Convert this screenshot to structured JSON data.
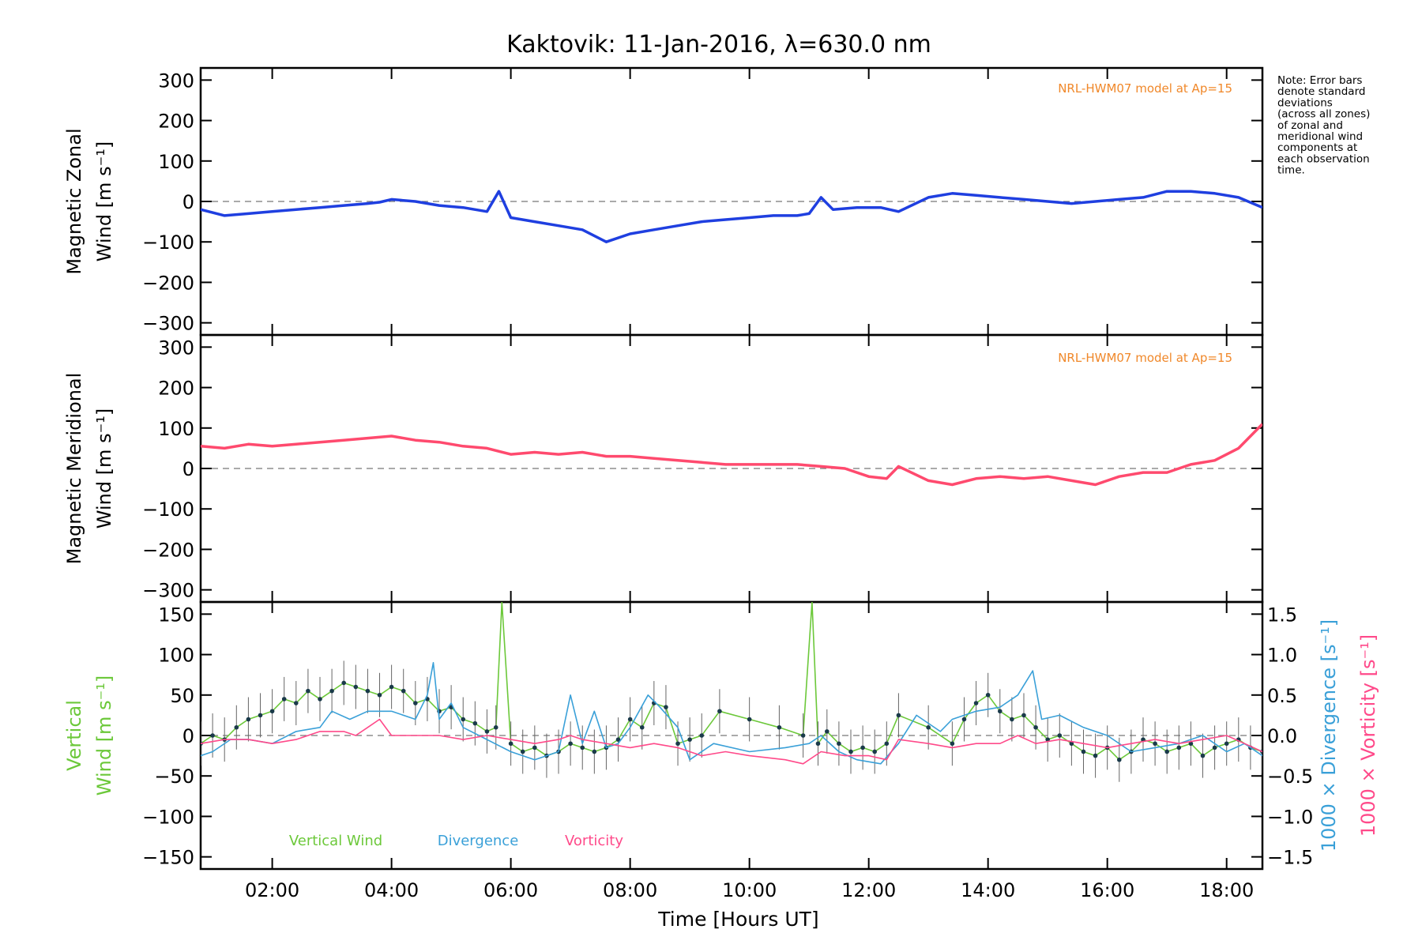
{
  "chart_data": {
    "type": "line",
    "title": "Kaktovik: 11-Jan-2016, λ=630.0 nm",
    "xlabel": "Time [Hours UT]",
    "xlim": [
      0.8,
      18.6
    ],
    "x_ticks": [
      2,
      4,
      6,
      8,
      10,
      12,
      14,
      16,
      18
    ],
    "x_tick_labels": [
      "02:00",
      "04:00",
      "06:00",
      "08:00",
      "10:00",
      "12:00",
      "14:00",
      "16:00",
      "18:00"
    ],
    "note": [
      "Note: Error bars",
      "denote standard",
      "deviations",
      "(across all zones)",
      "of zonal and",
      "meridional wind",
      "components at",
      "each observation",
      "time."
    ],
    "panels": [
      {
        "id": "zonal",
        "ylabel": [
          "Magnetic Zonal",
          "Wind [m s⁻¹]"
        ],
        "ylim": [
          -330,
          330
        ],
        "y_ticks": [
          -300,
          -200,
          -100,
          0,
          100,
          200,
          300
        ],
        "y_tick_labels": [
          "−300",
          "−200",
          "−100",
          "0",
          "100",
          "200",
          "300"
        ],
        "model_label": "NRL-HWM07 model at Ap=15",
        "series": [
          {
            "color": "#1f3fe0",
            "x": [
              0.8,
              1.2,
              1.6,
              2.0,
              2.4,
              2.8,
              3.2,
              3.6,
              3.8,
              4.0,
              4.4,
              4.8,
              5.2,
              5.6,
              5.8,
              6.0,
              6.4,
              6.8,
              7.2,
              7.6,
              8.0,
              8.4,
              8.8,
              9.2,
              9.6,
              10.0,
              10.4,
              10.8,
              11.0,
              11.2,
              11.4,
              11.8,
              12.2,
              12.5,
              13.0,
              13.4,
              13.8,
              14.2,
              14.6,
              15.0,
              15.4,
              15.8,
              16.2,
              16.6,
              17.0,
              17.4,
              17.8,
              18.2,
              18.6
            ],
            "y": [
              -20,
              -35,
              -30,
              -25,
              -20,
              -15,
              -10,
              -5,
              -2,
              5,
              0,
              -10,
              -15,
              -25,
              25,
              -40,
              -50,
              -60,
              -70,
              -100,
              -80,
              -70,
              -60,
              -50,
              -45,
              -40,
              -35,
              -35,
              -30,
              10,
              -20,
              -15,
              -15,
              -25,
              10,
              20,
              15,
              10,
              5,
              0,
              -5,
              0,
              5,
              10,
              25,
              25,
              20,
              10,
              -15
            ]
          }
        ]
      },
      {
        "id": "meridional",
        "ylabel": [
          "Magnetic Meridional",
          "Wind [m s⁻¹]"
        ],
        "ylim": [
          -330,
          330
        ],
        "y_ticks": [
          -300,
          -200,
          -100,
          0,
          100,
          200,
          300
        ],
        "y_tick_labels": [
          "−300",
          "−200",
          "−100",
          "0",
          "100",
          "200",
          "300"
        ],
        "model_label": "NRL-HWM07 model at Ap=15",
        "series": [
          {
            "color": "#ff4a6e",
            "x": [
              0.8,
              1.2,
              1.6,
              2.0,
              2.4,
              2.8,
              3.2,
              3.6,
              4.0,
              4.4,
              4.8,
              5.2,
              5.6,
              6.0,
              6.4,
              6.8,
              7.2,
              7.6,
              8.0,
              8.4,
              8.8,
              9.2,
              9.6,
              10.0,
              10.4,
              10.8,
              11.2,
              11.6,
              12.0,
              12.3,
              12.5,
              13.0,
              13.4,
              13.8,
              14.2,
              14.6,
              15.0,
              15.4,
              15.8,
              16.2,
              16.6,
              17.0,
              17.4,
              17.8,
              18.2,
              18.6
            ],
            "y": [
              55,
              50,
              60,
              55,
              60,
              65,
              70,
              75,
              80,
              70,
              65,
              55,
              50,
              35,
              40,
              35,
              40,
              30,
              30,
              25,
              20,
              15,
              10,
              10,
              10,
              10,
              5,
              0,
              -20,
              -25,
              5,
              -30,
              -40,
              -25,
              -20,
              -25,
              -20,
              -30,
              -40,
              -20,
              -10,
              -10,
              10,
              20,
              50,
              110
            ]
          }
        ]
      },
      {
        "id": "vertical",
        "ylabel": [
          "Vertical",
          "Wind [m s⁻¹]"
        ],
        "ylim": [
          -165,
          165
        ],
        "y_ticks": [
          -150,
          -100,
          -50,
          0,
          50,
          100,
          150
        ],
        "y_tick_labels": [
          "−150",
          "−100",
          "−50",
          "0",
          "50",
          "100",
          "150"
        ],
        "y2label": [
          "1000 × Divergence [s⁻¹]",
          "1000 × Vorticity [s⁻¹]"
        ],
        "y2lim": [
          -1.65,
          1.65
        ],
        "y2_ticks": [
          -1.5,
          -1.0,
          -0.5,
          0.0,
          0.5,
          1.0,
          1.5
        ],
        "y2_tick_labels": [
          "−1.5",
          "−1.0",
          "−0.5",
          "0.0",
          "0.5",
          "1.0",
          "1.5"
        ],
        "legend": [
          "Vertical Wind",
          "Divergence",
          "Vorticity"
        ],
        "series": [
          {
            "name": "Vertical Wind",
            "color": "#6cc83a",
            "x": [
              0.8,
              1.0,
              1.2,
              1.4,
              1.6,
              1.8,
              2.0,
              2.2,
              2.4,
              2.6,
              2.8,
              3.0,
              3.2,
              3.4,
              3.6,
              3.8,
              4.0,
              4.2,
              4.4,
              4.6,
              4.8,
              5.0,
              5.2,
              5.4,
              5.6,
              5.75,
              5.85,
              6.0,
              6.2,
              6.4,
              6.6,
              6.8,
              7.0,
              7.2,
              7.4,
              7.6,
              7.8,
              8.0,
              8.2,
              8.4,
              8.6,
              8.8,
              9.0,
              9.2,
              9.5,
              10.0,
              10.5,
              10.9,
              11.05,
              11.15,
              11.3,
              11.5,
              11.7,
              11.9,
              12.1,
              12.3,
              12.5,
              13.0,
              13.4,
              13.6,
              13.8,
              14.0,
              14.2,
              14.4,
              14.6,
              14.8,
              15.0,
              15.2,
              15.4,
              15.6,
              15.8,
              16.0,
              16.2,
              16.4,
              16.6,
              16.8,
              17.0,
              17.2,
              17.4,
              17.6,
              17.8,
              18.0,
              18.2,
              18.4,
              18.6
            ],
            "y": [
              -10,
              0,
              -5,
              10,
              20,
              25,
              30,
              45,
              40,
              55,
              45,
              55,
              65,
              60,
              55,
              50,
              60,
              55,
              40,
              45,
              30,
              35,
              20,
              15,
              5,
              10,
              165,
              -10,
              -20,
              -15,
              -25,
              -20,
              -10,
              -15,
              -20,
              -15,
              -5,
              20,
              10,
              40,
              35,
              -10,
              -5,
              0,
              30,
              20,
              10,
              0,
              165,
              -10,
              5,
              -10,
              -20,
              -15,
              -20,
              -10,
              25,
              10,
              -10,
              20,
              40,
              50,
              30,
              20,
              25,
              10,
              -5,
              0,
              -10,
              -20,
              -25,
              -15,
              -30,
              -20,
              -5,
              -10,
              -20,
              -15,
              -10,
              -25,
              -15,
              -10,
              -5,
              -15,
              -20
            ]
          },
          {
            "name": "Divergence",
            "color": "#3aa0d8",
            "axis": "right",
            "x": [
              0.8,
              1.0,
              1.3,
              1.6,
              2.0,
              2.4,
              2.8,
              3.0,
              3.3,
              3.6,
              4.0,
              4.4,
              4.6,
              4.7,
              4.8,
              5.0,
              5.2,
              5.6,
              6.0,
              6.4,
              6.8,
              7.0,
              7.2,
              7.4,
              7.6,
              7.8,
              8.0,
              8.3,
              8.5,
              8.8,
              9.0,
              9.4,
              10.0,
              10.6,
              11.0,
              11.2,
              11.5,
              11.8,
              12.2,
              12.5,
              12.8,
              13.2,
              13.4,
              13.8,
              14.2,
              14.5,
              14.75,
              14.9,
              15.2,
              15.6,
              16.0,
              16.4,
              16.8,
              17.2,
              17.6,
              18.0,
              18.3,
              18.6
            ],
            "y": [
              -0.25,
              -0.2,
              -0.05,
              -0.05,
              -0.1,
              0.05,
              0.1,
              0.3,
              0.2,
              0.3,
              0.3,
              0.2,
              0.5,
              0.9,
              0.2,
              0.4,
              0.1,
              -0.05,
              -0.2,
              -0.3,
              -0.2,
              0.5,
              -0.1,
              0.3,
              -0.15,
              -0.1,
              0.1,
              0.5,
              0.35,
              0.1,
              -0.3,
              -0.1,
              -0.2,
              -0.15,
              -0.1,
              0.0,
              -0.2,
              -0.3,
              -0.35,
              -0.1,
              0.25,
              0.05,
              0.2,
              0.3,
              0.35,
              0.5,
              0.8,
              0.2,
              0.25,
              0.1,
              0.0,
              -0.2,
              -0.15,
              -0.1,
              0.0,
              -0.2,
              -0.1,
              -0.25
            ]
          },
          {
            "name": "Vorticity",
            "color": "#ff4a8a",
            "axis": "right",
            "x": [
              0.8,
              1.2,
              1.6,
              2.0,
              2.4,
              2.8,
              3.2,
              3.4,
              3.6,
              3.8,
              4.0,
              4.4,
              4.8,
              5.2,
              5.6,
              6.0,
              6.4,
              6.8,
              7.0,
              7.2,
              7.6,
              8.0,
              8.4,
              8.8,
              9.2,
              9.6,
              10.0,
              10.6,
              10.9,
              11.2,
              11.6,
              12.0,
              12.3,
              12.5,
              13.0,
              13.4,
              13.8,
              14.2,
              14.5,
              14.8,
              15.2,
              15.6,
              16.0,
              16.4,
              16.8,
              17.2,
              17.6,
              18.0,
              18.3,
              18.6
            ],
            "y": [
              -0.1,
              -0.05,
              -0.05,
              -0.1,
              -0.05,
              0.05,
              0.05,
              0.0,
              0.1,
              0.2,
              0.0,
              0.0,
              0.0,
              -0.05,
              0.0,
              -0.05,
              -0.1,
              -0.05,
              0.0,
              -0.05,
              -0.1,
              -0.15,
              -0.1,
              -0.15,
              -0.25,
              -0.2,
              -0.25,
              -0.3,
              -0.35,
              -0.2,
              -0.25,
              -0.25,
              -0.3,
              -0.05,
              -0.1,
              -0.15,
              -0.1,
              -0.1,
              0.0,
              -0.1,
              -0.05,
              -0.1,
              -0.15,
              -0.1,
              -0.05,
              -0.1,
              -0.05,
              0.0,
              -0.1,
              -0.2
            ]
          }
        ]
      }
    ]
  }
}
